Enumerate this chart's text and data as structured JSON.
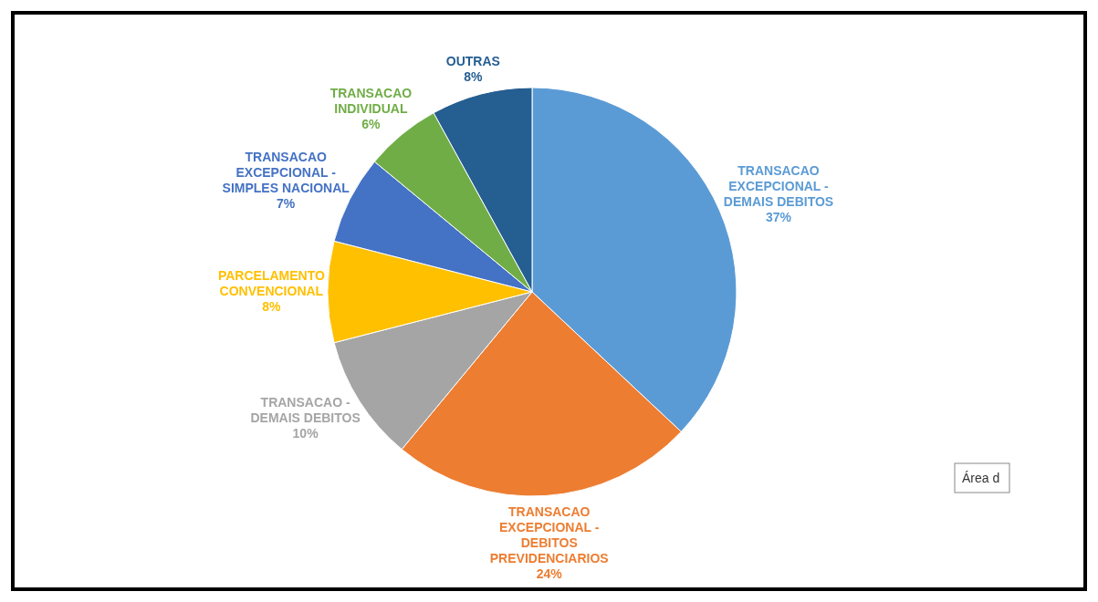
{
  "chart_data": {
    "type": "pie",
    "categories": [
      "TRANSACAO EXCEPCIONAL - DEMAIS DEBITOS",
      "TRANSACAO EXCEPCIONAL - DEBITOS PREVIDENCIARIOS",
      "TRANSACAO - DEMAIS DEBITOS",
      "PARCELAMENTO CONVENCIONAL",
      "TRANSACAO EXCEPCIONAL - SIMPLES NACIONAL",
      "TRANSACAO INDIVIDUAL",
      "OUTRAS"
    ],
    "values": [
      37,
      24,
      10,
      8,
      7,
      6,
      8
    ],
    "value_labels": [
      "37%",
      "24%",
      "10%",
      "8%",
      "7%",
      "6%",
      "8%"
    ],
    "colors": [
      "#5b9bd5",
      "#ed7d31",
      "#a5a5a5",
      "#ffc000",
      "#4472c4",
      "#70ad47",
      "#255e91"
    ],
    "annotations": [
      "Área d"
    ]
  }
}
